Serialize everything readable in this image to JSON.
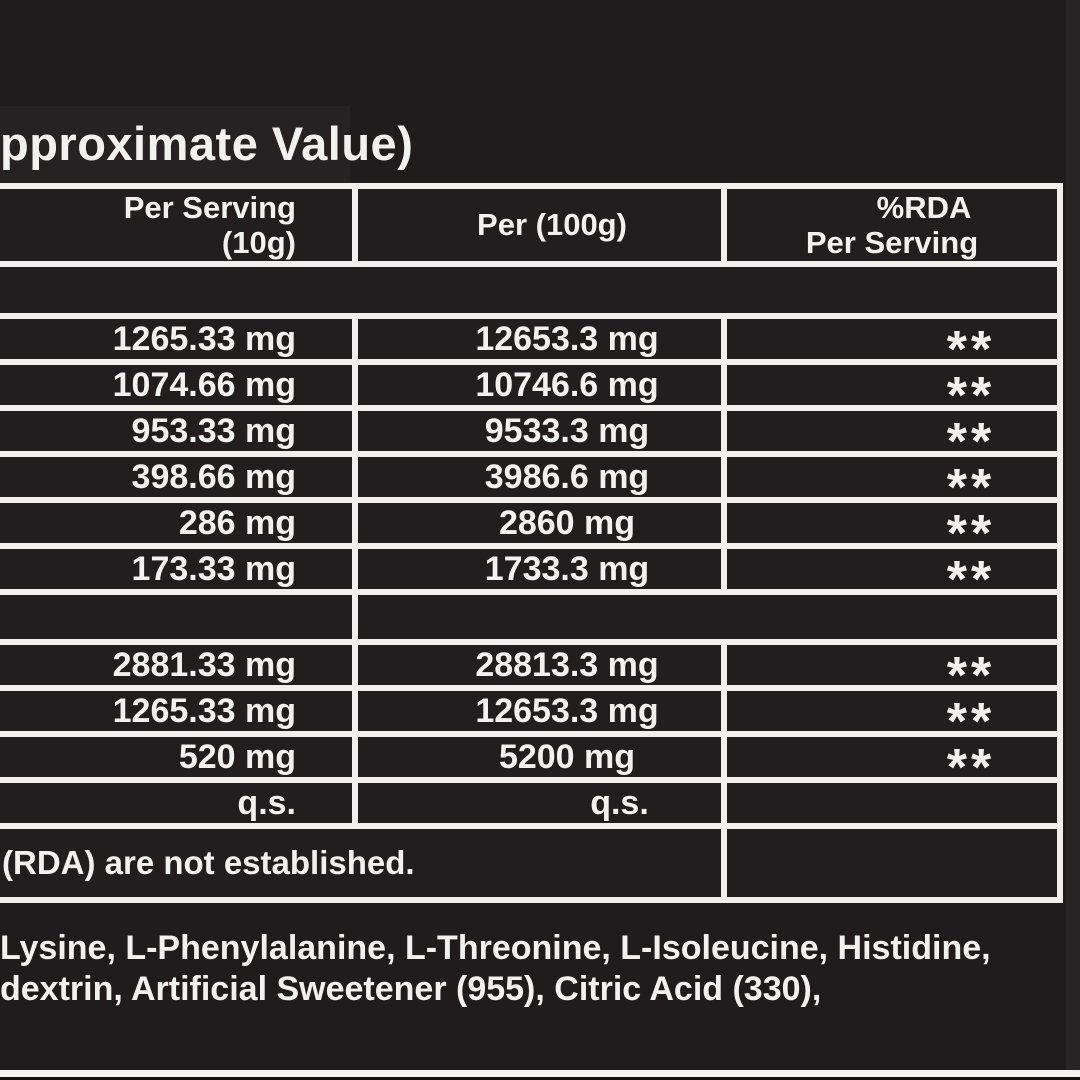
{
  "title_partial": "pproximate Value)",
  "table": {
    "header": {
      "col1_line1": "Per Serving",
      "col1_line2": "(10g)",
      "col2": "Per (100g)",
      "col3_line1": "%RDA",
      "col3_line2": "Per Serving"
    },
    "rows": [
      {
        "per_serving": "1265.33 mg",
        "per_100g": "12653.3 mg",
        "rda": "**"
      },
      {
        "per_serving": "1074.66 mg",
        "per_100g": "10746.6 mg",
        "rda": "**"
      },
      {
        "per_serving": "953.33 mg",
        "per_100g": "9533.3 mg",
        "rda": "**"
      },
      {
        "per_serving": "398.66 mg",
        "per_100g": "3986.6 mg",
        "rda": "**"
      },
      {
        "per_serving": "286 mg",
        "per_100g": "2860 mg",
        "rda": "**"
      },
      {
        "per_serving": "173.33 mg",
        "per_100g": "1733.3 mg",
        "rda": "**"
      }
    ],
    "rows2": [
      {
        "per_serving": "2881.33 mg",
        "per_100g": "28813.3 mg",
        "rda": "**"
      },
      {
        "per_serving": "1265.33 mg",
        "per_100g": "12653.3 mg",
        "rda": "**"
      },
      {
        "per_serving": "520 mg",
        "per_100g": "5200 mg",
        "rda": "**"
      },
      {
        "per_serving": "q.s.",
        "per_100g": "q.s.",
        "rda": ""
      }
    ],
    "footnote": "(RDA) are not established."
  },
  "ingredients_lines": [
    "Lysine, L-Phenylalanine, L-Threonine, L-Isoleucine, Histidine,",
    "dextrin, Artificial Sweetener (955), Citric Acid (330),"
  ],
  "colors": {
    "background": "#201c1d",
    "cell_background": "#221e1f",
    "grid_lines": "#f2efee",
    "text": "#f3f1f0"
  }
}
